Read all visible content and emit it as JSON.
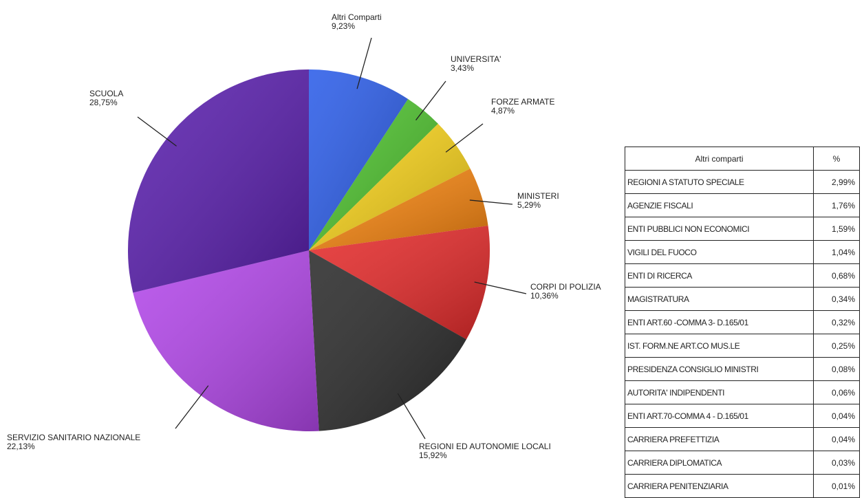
{
  "chart_data": {
    "type": "pie",
    "title": "",
    "slices": [
      {
        "label": "Altri Comparti",
        "value_label": "9,23%",
        "value": 9.23,
        "color": "#2c5de8"
      },
      {
        "label": "UNIVERSITA'",
        "value_label": "3,43%",
        "value": 3.43,
        "color": "#4ec22e"
      },
      {
        "label": "FORZE ARMATE",
        "value_label": "4,87%",
        "value": 4.87,
        "color": "#f7d21a"
      },
      {
        "label": "MINISTERI",
        "value_label": "5,29%",
        "value": 5.29,
        "color": "#f5840f"
      },
      {
        "label": "CORPI DI POLIZIA",
        "value_label": "10,36%",
        "value": 10.36,
        "color": "#e52b2b"
      },
      {
        "label": "REGIONI ED AUTONOMIE LOCALI",
        "value_label": "15,92%",
        "value": 15.92,
        "color": "#2b2b2b"
      },
      {
        "label": "SERVIZIO SANITARIO NAZIONALE",
        "value_label": "22,13%",
        "value": 22.13,
        "color": "#b347ea"
      },
      {
        "label": "SCUOLA",
        "value_label": "28,75%",
        "value": 28.75,
        "color": "#5a1fae"
      }
    ]
  },
  "table": {
    "header_name": "Altri comparti",
    "header_pct": "%",
    "rows": [
      {
        "name": "REGIONI A STATUTO SPECIALE",
        "pct": "2,99%"
      },
      {
        "name": "AGENZIE FISCALI",
        "pct": "1,76%"
      },
      {
        "name": "ENTI PUBBLICI NON ECONOMICI",
        "pct": "1,59%"
      },
      {
        "name": "VIGILI DEL FUOCO",
        "pct": "1,04%"
      },
      {
        "name": "ENTI DI RICERCA",
        "pct": "0,68%"
      },
      {
        "name": "MAGISTRATURA",
        "pct": "0,34%"
      },
      {
        "name": "ENTI ART.60 -COMMA 3- D.165/01",
        "pct": "0,32%"
      },
      {
        "name": "IST. FORM.NE ART.CO MUS.LE",
        "pct": "0,25%"
      },
      {
        "name": "PRESIDENZA CONSIGLIO MINISTRI",
        "pct": "0,08%"
      },
      {
        "name": "AUTORITA' INDIPENDENTI",
        "pct": "0,06%"
      },
      {
        "name": "ENTI ART.70-COMMA 4 - D.165/01",
        "pct": "0,04%"
      },
      {
        "name": "CARRIERA PREFETTIZIA",
        "pct": "0,04%"
      },
      {
        "name": "CARRIERA DIPLOMATICA",
        "pct": "0,03%"
      },
      {
        "name": "CARRIERA PENITENZIARIA",
        "pct": "0,01%"
      }
    ]
  }
}
